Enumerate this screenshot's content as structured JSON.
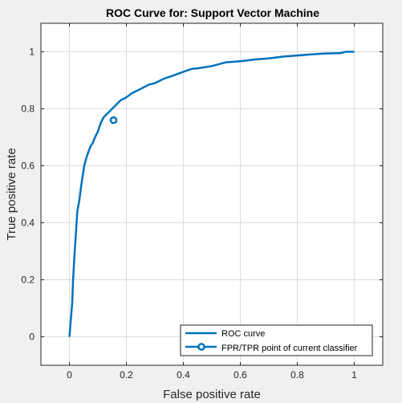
{
  "chart_data": {
    "type": "line",
    "title": "ROC Curve for: Support Vector Machine",
    "xlabel": "False positive rate",
    "ylabel": "True positive rate",
    "xlim": [
      -0.1,
      1.1
    ],
    "ylim": [
      -0.1,
      1.1
    ],
    "xticks": [
      "0",
      "0.2",
      "0.4",
      "0.6",
      "0.8",
      "1"
    ],
    "yticks": [
      "0",
      "0.2",
      "0.4",
      "0.6",
      "0.8",
      "1"
    ],
    "grid": true,
    "legend_position": "bottom-right",
    "series": [
      {
        "name": "ROC curve",
        "color": "#0072BD",
        "x": [
          0,
          0.005,
          0.01,
          0.013,
          0.018,
          0.022,
          0.028,
          0.035,
          0.04,
          0.046,
          0.052,
          0.06,
          0.067,
          0.075,
          0.082,
          0.09,
          0.1,
          0.11,
          0.12,
          0.13,
          0.14,
          0.15,
          0.16,
          0.17,
          0.18,
          0.2,
          0.22,
          0.25,
          0.28,
          0.3,
          0.33,
          0.36,
          0.4,
          0.43,
          0.45,
          0.5,
          0.55,
          0.6,
          0.65,
          0.7,
          0.75,
          0.8,
          0.85,
          0.9,
          0.95,
          0.97,
          1.0
        ],
        "y": [
          0,
          0.06,
          0.12,
          0.2,
          0.29,
          0.35,
          0.44,
          0.48,
          0.52,
          0.56,
          0.6,
          0.63,
          0.65,
          0.67,
          0.68,
          0.7,
          0.72,
          0.75,
          0.77,
          0.78,
          0.79,
          0.8,
          0.81,
          0.82,
          0.83,
          0.84,
          0.855,
          0.87,
          0.885,
          0.89,
          0.905,
          0.915,
          0.93,
          0.94,
          0.942,
          0.95,
          0.963,
          0.967,
          0.973,
          0.977,
          0.983,
          0.987,
          0.991,
          0.994,
          0.995,
          1.0,
          1.0
        ]
      },
      {
        "name": "FPR/TPR point of current classifier",
        "color": "#0072BD",
        "marker": "circle",
        "x": [
          0.155
        ],
        "y": [
          0.76
        ]
      }
    ]
  }
}
